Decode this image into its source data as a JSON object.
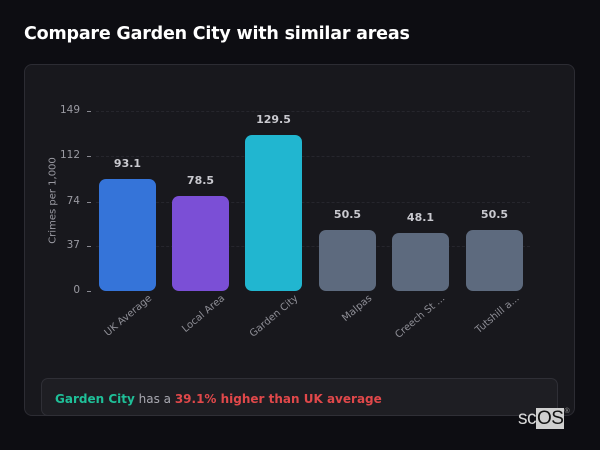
{
  "header": {
    "title": "Compare Garden City with similar areas"
  },
  "chart_data": {
    "type": "bar",
    "title": "Compare Garden City with similar areas",
    "xlabel": "",
    "ylabel": "Crimes per 1,000",
    "ylim": [
      0,
      149
    ],
    "yticks": [
      0,
      37,
      74,
      112,
      149
    ],
    "grid": true,
    "legend": null,
    "categories": [
      "UK Average",
      "Local Area",
      "Garden City",
      "Malpas",
      "Creech St ...",
      "Tutshill a..."
    ],
    "values": [
      93.1,
      78.5,
      129.5,
      50.5,
      48.1,
      50.5
    ],
    "value_labels": [
      "93.1",
      "78.5",
      "129.5",
      "50.5",
      "48.1",
      "50.5"
    ],
    "colors": [
      "#3574d9",
      "#7b4fd6",
      "#21b6d0",
      "#5d6a7e",
      "#5d6a7e",
      "#5d6a7e"
    ]
  },
  "summary": {
    "city": "Garden City",
    "middle": " has a ",
    "stat": "39.1% higher than UK average"
  },
  "logo": {
    "main": "sc",
    "box": "OS",
    "reg": "®"
  }
}
